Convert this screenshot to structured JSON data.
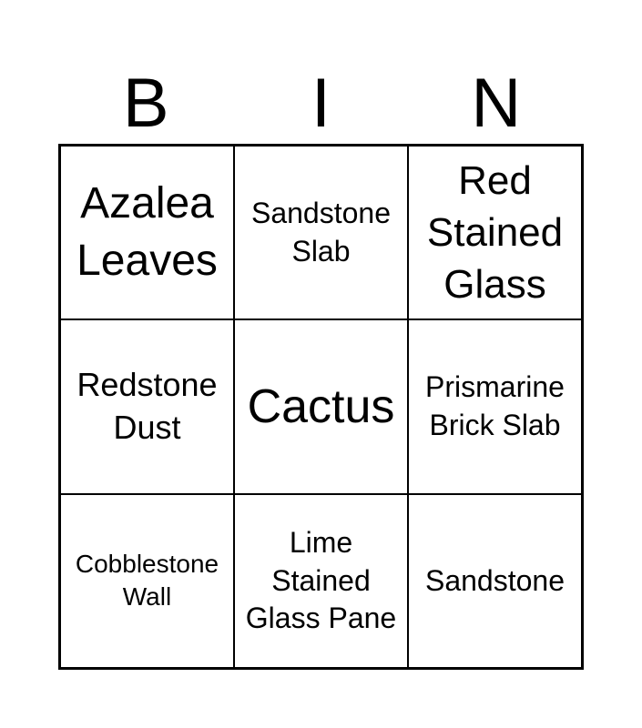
{
  "header": {
    "letters": [
      "B",
      "I",
      "N"
    ]
  },
  "cells": [
    "Azalea Leaves",
    "Sandstone Slab",
    "Red Stained Glass",
    "Redstone Dust",
    "Cactus",
    "Prismarine Brick Slab",
    "Cobblestone Wall",
    "Lime Stained Glass Pane",
    "Sandstone"
  ]
}
